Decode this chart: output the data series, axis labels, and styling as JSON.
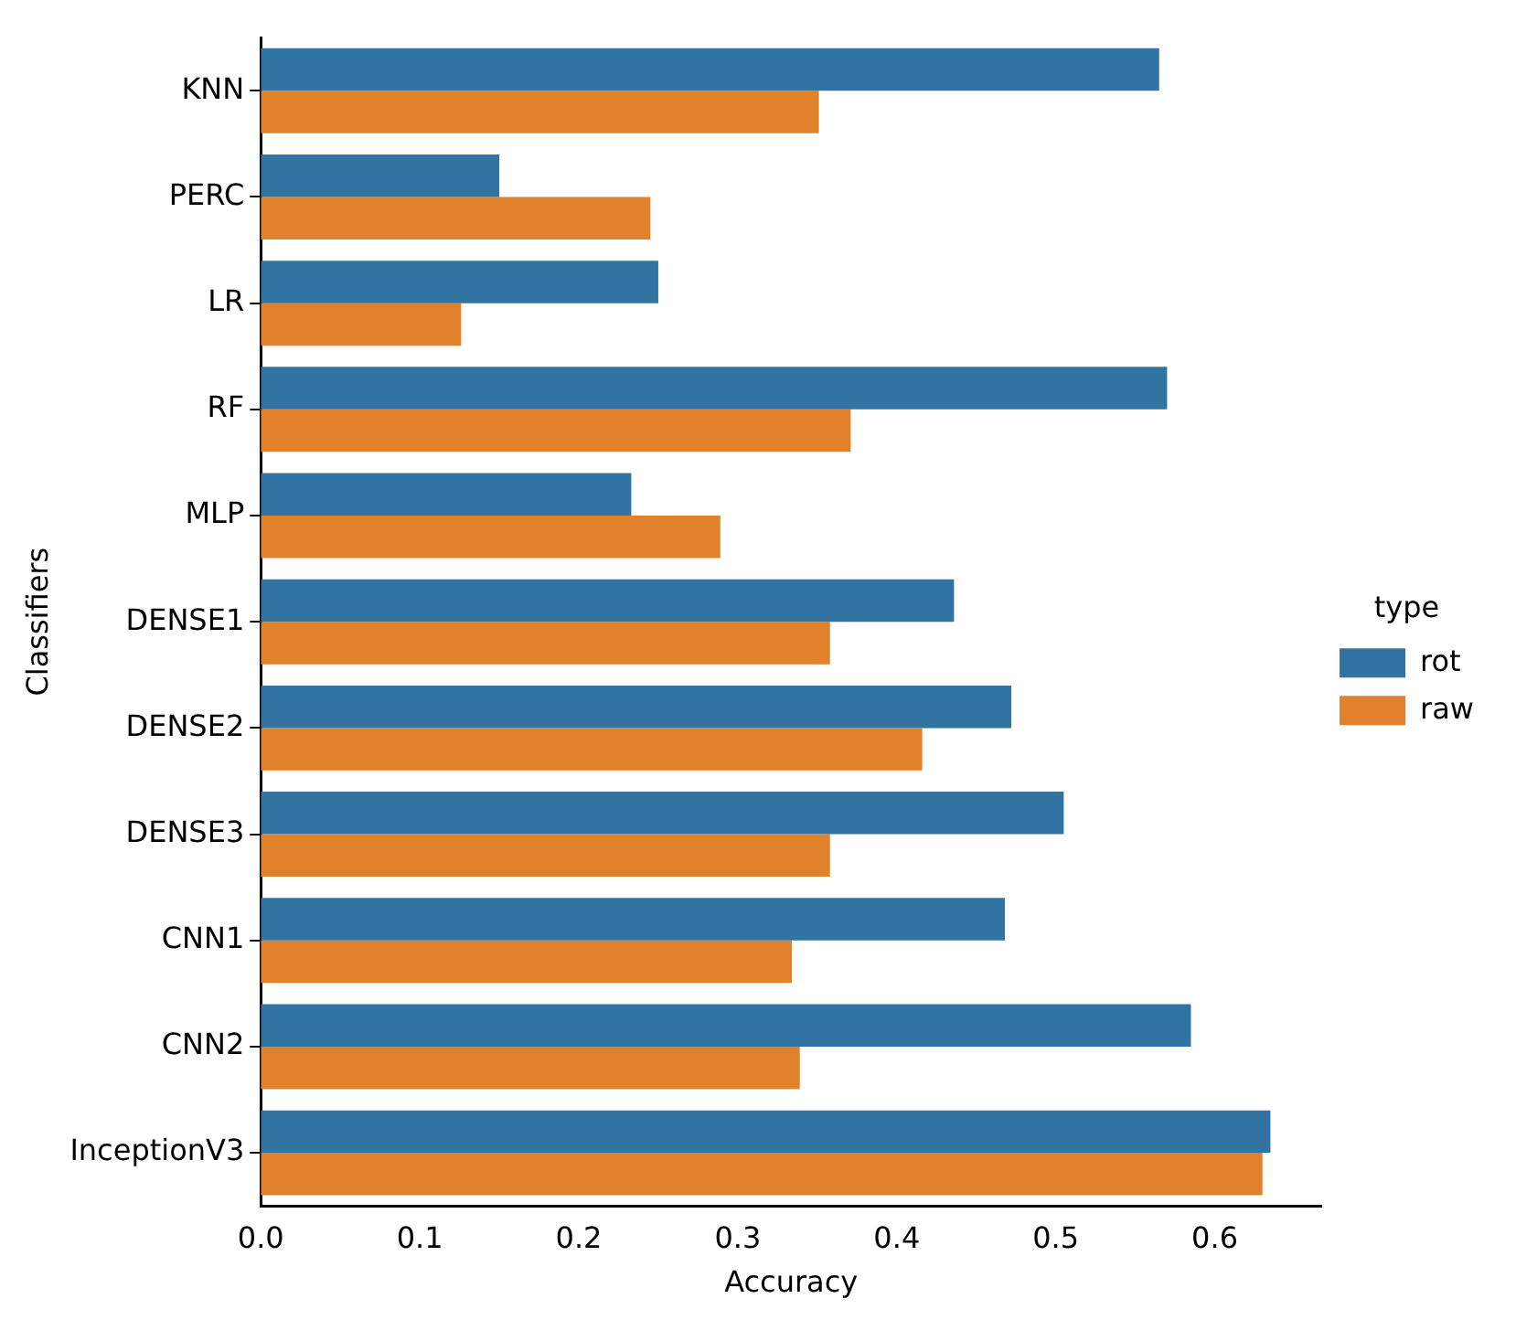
{
  "chart_data": {
    "type": "bar",
    "orientation": "horizontal",
    "xlabel": "Accuracy",
    "ylabel": "Classifiers",
    "legend_title": "type",
    "legend": "right",
    "categories": [
      "KNN",
      "PERC",
      "LR",
      "RF",
      "MLP",
      "DENSE1",
      "DENSE2",
      "DENSE3",
      "CNN1",
      "CNN2",
      "InceptionV3"
    ],
    "series": [
      {
        "name": "rot",
        "color": "#3274a1",
        "values": [
          0.565,
          0.15,
          0.25,
          0.57,
          0.233,
          0.436,
          0.472,
          0.505,
          0.468,
          0.585,
          0.635
        ]
      },
      {
        "name": "raw",
        "color": "#e1812c",
        "values": [
          0.351,
          0.245,
          0.126,
          0.371,
          0.289,
          0.358,
          0.416,
          0.358,
          0.334,
          0.339,
          0.63
        ]
      }
    ],
    "xlim": [
      0,
      0.667
    ],
    "xticks": [
      {
        "value": 0,
        "label": "0.0"
      },
      0.1,
      0.2,
      0.3,
      0.4,
      0.5,
      0.6
    ],
    "grid": false
  }
}
